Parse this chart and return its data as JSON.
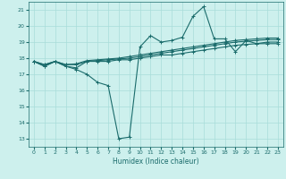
{
  "xlabel": "Humidex (Indice chaleur)",
  "xlim": [
    -0.5,
    23.5
  ],
  "ylim": [
    12.5,
    21.5
  ],
  "yticks": [
    13,
    14,
    15,
    16,
    17,
    18,
    19,
    20,
    21
  ],
  "xticks": [
    0,
    1,
    2,
    3,
    4,
    5,
    6,
    7,
    8,
    9,
    10,
    11,
    12,
    13,
    14,
    15,
    16,
    17,
    18,
    19,
    20,
    21,
    22,
    23
  ],
  "bg_color": "#cdf0ed",
  "grid_color": "#a8ddd9",
  "line_color": "#1a6b6b",
  "lines": [
    [
      17.8,
      17.5,
      17.8,
      17.5,
      17.3,
      17.0,
      16.5,
      16.3,
      13.0,
      13.1,
      18.7,
      19.4,
      19.0,
      19.1,
      19.3,
      20.6,
      21.2,
      19.2,
      19.2,
      18.4,
      19.1,
      18.9,
      18.9,
      18.9
    ],
    [
      17.8,
      17.5,
      17.8,
      17.5,
      17.4,
      17.8,
      17.8,
      17.8,
      17.9,
      17.9,
      18.0,
      18.1,
      18.2,
      18.2,
      18.3,
      18.4,
      18.5,
      18.6,
      18.7,
      18.8,
      18.85,
      18.9,
      19.0,
      19.0
    ],
    [
      17.8,
      17.6,
      17.8,
      17.6,
      17.6,
      17.8,
      17.85,
      17.9,
      17.95,
      18.0,
      18.1,
      18.2,
      18.3,
      18.4,
      18.5,
      18.6,
      18.7,
      18.8,
      18.9,
      19.0,
      19.05,
      19.1,
      19.15,
      19.15
    ],
    [
      17.8,
      17.6,
      17.8,
      17.6,
      17.65,
      17.85,
      17.9,
      17.95,
      18.0,
      18.1,
      18.2,
      18.3,
      18.4,
      18.5,
      18.6,
      18.7,
      18.8,
      18.9,
      19.0,
      19.1,
      19.15,
      19.2,
      19.25,
      19.25
    ]
  ]
}
